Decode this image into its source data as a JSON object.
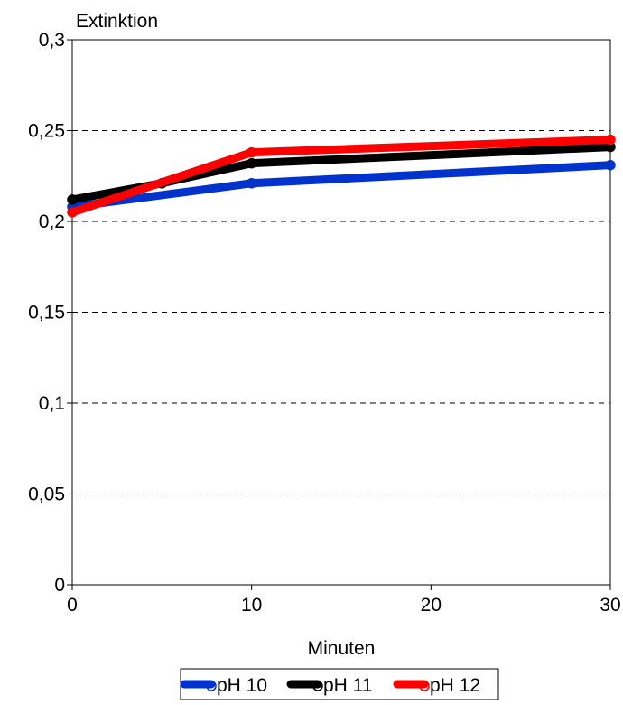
{
  "chart_data": {
    "type": "line",
    "title": "",
    "ylabel": "Extinktion",
    "xlabel": "Minuten",
    "xlim": [
      0,
      30
    ],
    "ylim": [
      0,
      0.3
    ],
    "x_ticks": [
      0,
      10,
      20,
      30
    ],
    "x_tick_labels": [
      "0",
      "10",
      "20",
      "30"
    ],
    "y_ticks": [
      0,
      0.05,
      0.1,
      0.15,
      0.2,
      0.25,
      0.3
    ],
    "y_tick_labels": [
      "0",
      "0,05",
      "0,1",
      "0,15",
      "0,2",
      "0,25",
      "0,3"
    ],
    "grid": "horizontal-dashed",
    "legend_position": "bottom",
    "series": [
      {
        "name": "pH 10",
        "color": "#0033cc",
        "x": [
          0,
          10,
          30
        ],
        "y": [
          0.208,
          0.221,
          0.231
        ]
      },
      {
        "name": "pH 11",
        "color": "#000000",
        "x": [
          0,
          5,
          10,
          30
        ],
        "y": [
          0.212,
          0.221,
          0.232,
          0.241
        ]
      },
      {
        "name": "pH 12",
        "color": "#ff0000",
        "x": [
          0,
          10,
          30
        ],
        "y": [
          0.205,
          0.238,
          0.245
        ]
      }
    ]
  }
}
